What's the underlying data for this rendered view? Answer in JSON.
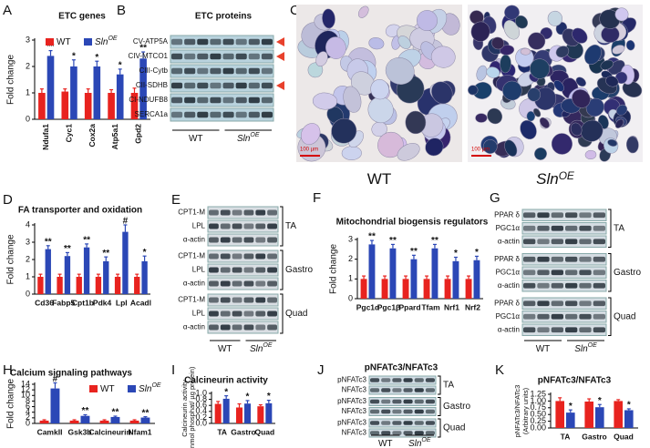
{
  "chart_data": [
    {
      "type": "bar",
      "panel": "A",
      "title": "ETC genes",
      "ylabel": "Fold change",
      "categories": [
        "Ndufa1",
        "Cyc1",
        "Cox2a",
        "Atp5a1",
        "Gpd2"
      ],
      "series": [
        {
          "name": "WT",
          "color": "#e8231f",
          "values": [
            1.0,
            1.05,
            1.0,
            1.0,
            1.0
          ],
          "errors": [
            0.15,
            0.1,
            0.15,
            0.12,
            0.18
          ]
        },
        {
          "name": "Sln",
          "name_sup": "OE",
          "color": "#2b47b6",
          "values": [
            2.4,
            2.0,
            2.0,
            1.7,
            2.3
          ],
          "errors": [
            0.2,
            0.25,
            0.2,
            0.2,
            0.25
          ]
        }
      ],
      "annotations": [
        "**",
        "*",
        "*",
        "*",
        "**"
      ],
      "ylim": [
        0,
        3
      ],
      "yticks": [
        0,
        1,
        2,
        3
      ],
      "legend": true
    },
    {
      "type": "bar",
      "panel": "D",
      "title": "FA transporter and oxidation",
      "ylabel": "Fold change",
      "categories": [
        "Cd36",
        "Fabp5",
        "Cpt1b",
        "Pdk4",
        "Lpl",
        "Acadl"
      ],
      "series": [
        {
          "name": "WT",
          "color": "#e8231f",
          "values": [
            1.0,
            1.0,
            1.0,
            1.0,
            1.0,
            1.0
          ],
          "errors": [
            0.15,
            0.15,
            0.15,
            0.15,
            0.15,
            0.15
          ]
        },
        {
          "name": "Sln",
          "name_sup": "OE",
          "color": "#2b47b6",
          "values": [
            2.6,
            2.2,
            2.7,
            1.9,
            3.6,
            1.9
          ],
          "errors": [
            0.2,
            0.2,
            0.2,
            0.25,
            0.4,
            0.3
          ]
        }
      ],
      "annotations": [
        "**",
        "**",
        "**",
        "**",
        "#",
        "*"
      ],
      "ylim": [
        0,
        4
      ],
      "yticks": [
        0,
        1,
        2,
        3,
        4
      ],
      "legend": false
    },
    {
      "type": "bar",
      "panel": "F",
      "title": "Mitochondrial biogensis regulators",
      "ylabel": "Fold change",
      "categories": [
        "Pgc1α",
        "Pgc1β",
        "Ppard",
        "Tfam",
        "Nrf1",
        "Nrf2"
      ],
      "series": [
        {
          "name": "WT",
          "color": "#e8231f",
          "values": [
            1.0,
            1.0,
            1.0,
            1.0,
            1.0,
            1.0
          ],
          "errors": [
            0.15,
            0.15,
            0.15,
            0.15,
            0.15,
            0.15
          ]
        },
        {
          "name": "Sln",
          "name_sup": "OE",
          "color": "#2b47b6",
          "values": [
            2.75,
            2.55,
            2.0,
            2.55,
            1.9,
            1.95
          ],
          "errors": [
            0.2,
            0.2,
            0.2,
            0.2,
            0.2,
            0.2
          ]
        }
      ],
      "annotations": [
        "**",
        "**",
        "**",
        "**",
        "*",
        "*"
      ],
      "ylim": [
        0,
        3
      ],
      "yticks": [
        0,
        1,
        2,
        3
      ],
      "legend": false
    },
    {
      "type": "bar",
      "panel": "H",
      "title": "Calcium signaling pathways",
      "ylabel": "Fold change",
      "categories": [
        "CamkII",
        "Gsk3b",
        "Calcineurin",
        "Nfam1"
      ],
      "series": [
        {
          "name": "WT",
          "color": "#e8231f",
          "values": [
            1.0,
            1.0,
            1.0,
            1.0
          ],
          "errors": [
            0.3,
            0.3,
            0.3,
            0.3
          ]
        },
        {
          "name": "Sln",
          "name_sup": "OE",
          "color": "#2b47b6",
          "values": [
            12.5,
            2.7,
            2.3,
            2.1
          ],
          "errors": [
            2.0,
            0.4,
            0.3,
            0.3
          ]
        }
      ],
      "annotations": [
        "#",
        "**",
        "**",
        "**"
      ],
      "ylim": [
        0,
        14
      ],
      "yticks": [
        0,
        2,
        4,
        6,
        8,
        10,
        12,
        14
      ],
      "legend": true
    },
    {
      "type": "bar",
      "panel": "I",
      "title": "Calcineurin activity",
      "ylabel": [
        "Calcineurin activity",
        "(nmol phosphat/ µg protein)"
      ],
      "categories": [
        "TA",
        "Gastro",
        "Quad"
      ],
      "series": [
        {
          "name": "WT",
          "color": "#e8231f",
          "values": [
            0.65,
            0.53,
            0.57
          ],
          "errors": [
            0.08,
            0.12,
            0.05
          ]
        },
        {
          "name": "Sln",
          "name_sup": "OE",
          "color": "#2b47b6",
          "values": [
            0.82,
            0.66,
            0.67
          ],
          "errors": [
            0.1,
            0.1,
            0.1
          ]
        }
      ],
      "annotations": [
        "*",
        "*",
        "*"
      ],
      "ylim": [
        0,
        1
      ],
      "yticks": [
        {
          "value": 0,
          "label": "0.0"
        },
        0.2,
        0.4,
        0.6,
        0.8,
        {
          "value": 1,
          "label": "1.0"
        }
      ],
      "legend": false
    },
    {
      "type": "bar",
      "panel": "K",
      "title": "pNFATc3/NFATc3",
      "ylabel": [
        "pNFATc3/NFATc3",
        "(Arbitrary units)"
      ],
      "categories": [
        "TA",
        "Gastro",
        "Quad"
      ],
      "series": [
        {
          "name": "WT",
          "color": "#e8231f",
          "values": [
            1.0,
            0.98,
            1.0
          ],
          "errors": [
            0.12,
            0.1,
            0.05
          ]
        },
        {
          "name": "Sln",
          "name_sup": "OE",
          "color": "#2b47b6",
          "values": [
            0.57,
            0.77,
            0.66
          ],
          "errors": [
            0.1,
            0.1,
            0.05
          ]
        }
      ],
      "annotations": [
        "*",
        "*",
        "*"
      ],
      "ylim": [
        0,
        1.25
      ],
      "yticks": [
        {
          "value": 0,
          "label": "0.00"
        },
        0.25,
        {
          "value": 0.5,
          "label": "0.50"
        },
        0.75,
        {
          "value": 1,
          "label": "1.00"
        },
        1.25
      ],
      "legend": false
    }
  ],
  "blots": [
    {
      "panel": "B",
      "title": "ETC proteins",
      "sections": [
        {
          "rows": [
            "CV-ATP5A",
            "CIV-MTCO1",
            "CIII-Cytb",
            "CII-SDHB",
            "CI-NDUFB8",
            "SERCA1a"
          ]
        }
      ],
      "groups": [
        {
          "name": "WT"
        },
        {
          "name": "Sln",
          "name_sup": "OE"
        }
      ]
    },
    {
      "panel": "E",
      "sections": [
        {
          "tissue": "TA",
          "rows": [
            "CPT1-M",
            "LPL",
            "α-actin"
          ]
        },
        {
          "tissue": "Gastro",
          "rows": [
            "CPT1-M",
            "LPL",
            "α-actin"
          ]
        },
        {
          "tissue": "Quad",
          "rows": [
            "CPT1-M",
            "LPL",
            "α-actin"
          ]
        }
      ],
      "groups": [
        {
          "name": "WT"
        },
        {
          "name": "Sln",
          "name_sup": "OE"
        }
      ]
    },
    {
      "panel": "G",
      "sections": [
        {
          "tissue": "TA",
          "rows": [
            "PPAR δ",
            "PGC1α",
            "α-actin"
          ]
        },
        {
          "tissue": "Gastro",
          "rows": [
            "PPAR δ",
            "PGC1α",
            "α-actin"
          ]
        },
        {
          "tissue": "Quad",
          "rows": [
            "PPAR δ",
            "PGC1α",
            "α-actin"
          ]
        }
      ],
      "groups": [
        {
          "name": "WT"
        },
        {
          "name": "Sln",
          "name_sup": "OE"
        }
      ]
    },
    {
      "panel": "J",
      "title": "pNFATc3/NFATc3",
      "sections": [
        {
          "tissue": "TA",
          "rows": [
            "pNFATc3",
            "NFATc3"
          ]
        },
        {
          "tissue": "Gastro",
          "rows": [
            "pNFATc3",
            "NFATc3"
          ]
        },
        {
          "tissue": "Quad",
          "rows": [
            "pNFATc3",
            "NFATc3"
          ]
        }
      ],
      "groups": [
        {
          "name": "WT"
        },
        {
          "name": "Sln",
          "name_sup": "OE"
        }
      ]
    }
  ],
  "histology": {
    "panel": "C",
    "scale_bar": "100 µm",
    "images": [
      {
        "name": "WT"
      },
      {
        "name": "Sln",
        "name_sup": "OE"
      }
    ]
  }
}
